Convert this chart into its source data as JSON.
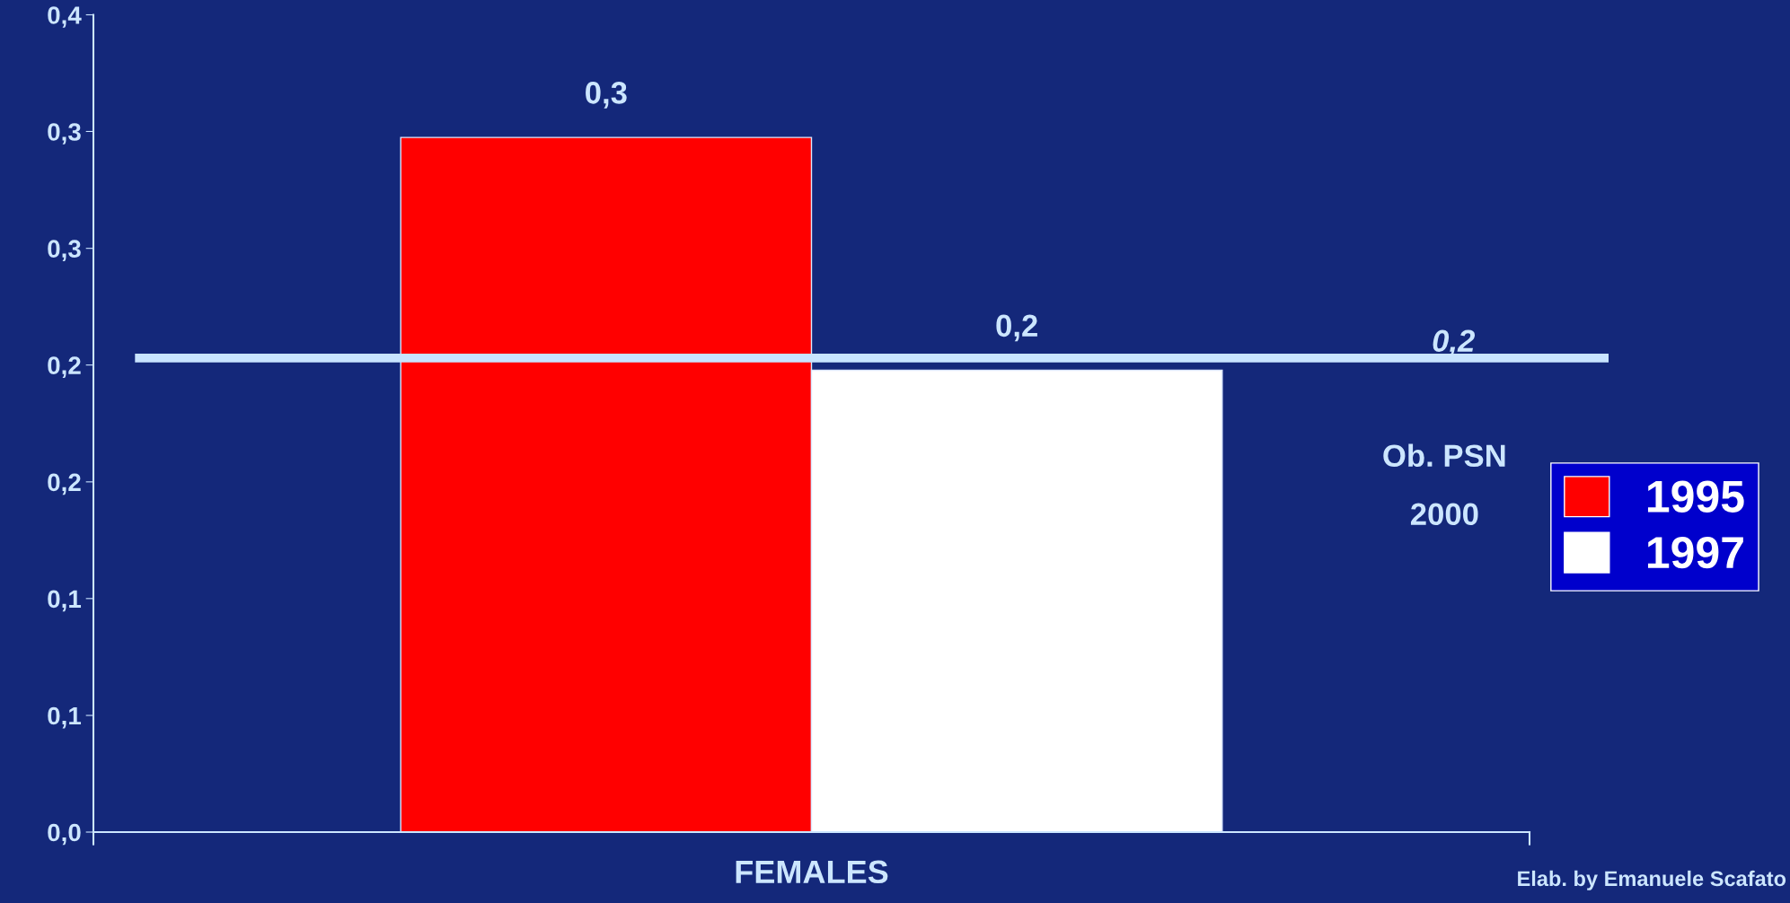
{
  "chart_data": {
    "type": "bar",
    "categories": [
      "FEMALES"
    ],
    "series": [
      {
        "name": "1995",
        "color": "#ff0000",
        "values": [
          0.34
        ],
        "value_labels": [
          "0,3"
        ]
      },
      {
        "name": "1997",
        "color": "#ffffff",
        "values": [
          0.226
        ],
        "value_labels": [
          "0,2"
        ]
      }
    ],
    "ylim": [
      0,
      0.4
    ],
    "yticks": [
      {
        "value": 0,
        "label": "0,0"
      },
      {
        "value": 0.0571,
        "label": "0,1"
      },
      {
        "value": 0.1143,
        "label": "0,1"
      },
      {
        "value": 0.1714,
        "label": "0,2"
      },
      {
        "value": 0.2286,
        "label": "0,2"
      },
      {
        "value": 0.2857,
        "label": "0,3"
      },
      {
        "value": 0.3429,
        "label": "0,3"
      },
      {
        "value": 0.4,
        "label": "0,4"
      }
    ],
    "ref_lines": [
      {
        "axis": "y",
        "value": 0.232,
        "label": "0,2",
        "color": "#c8e4ff"
      }
    ],
    "annotations": [
      "Ob. PSN\n2000",
      "Elab. by Emanuele Scafato"
    ],
    "legend": "right",
    "grid": false
  }
}
